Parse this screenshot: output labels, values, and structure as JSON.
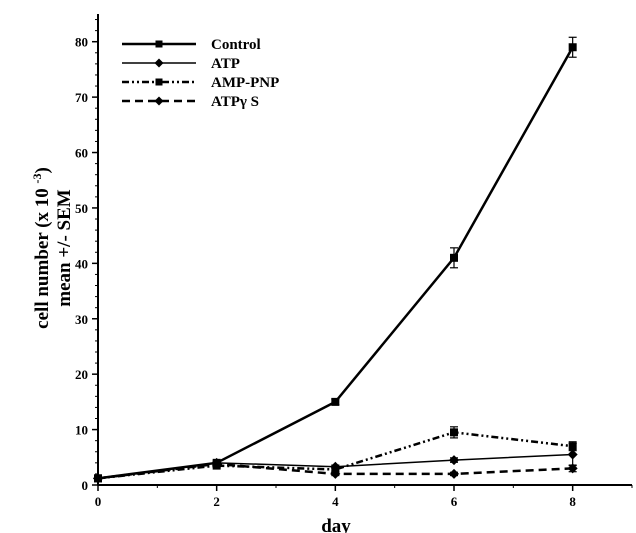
{
  "chart_data": {
    "type": "line",
    "xlabel": "day",
    "ylabel_line1": "cell number  (x 10 ",
    "ylabel_exp": "-3",
    "ylabel_line1_end": ")",
    "ylabel_line2": "mean +/-  SEM",
    "x": [
      0,
      2,
      4,
      6,
      8
    ],
    "xlim": [
      0,
      9
    ],
    "ylim": [
      0,
      85
    ],
    "xticks": [
      0,
      2,
      4,
      6,
      8
    ],
    "yticks": [
      0,
      10,
      20,
      30,
      40,
      50,
      60,
      70,
      80
    ],
    "grid": false,
    "legend_position": "top-left",
    "series": [
      {
        "name": "Control",
        "values": [
          1.2,
          4.0,
          15.0,
          41.0,
          79.0
        ],
        "err": [
          0.2,
          0.3,
          0.5,
          1.8,
          1.8
        ],
        "style": "solid",
        "marker": "square"
      },
      {
        "name": "ATP",
        "values": [
          1.2,
          4.0,
          3.3,
          4.5,
          5.5
        ],
        "err": [
          0.2,
          0.3,
          0.3,
          0.4,
          2.0
        ],
        "style": "thin",
        "marker": "diamond"
      },
      {
        "name": "AMP-PNP",
        "values": [
          1.2,
          3.5,
          2.8,
          9.5,
          7.0
        ],
        "err": [
          0.2,
          0.3,
          0.3,
          1.0,
          0.8
        ],
        "style": "dashdot",
        "marker": "square"
      },
      {
        "name": "ATPγ S",
        "values": [
          1.2,
          3.8,
          2.0,
          2.0,
          3.0
        ],
        "err": [
          0.2,
          0.3,
          0.3,
          0.3,
          0.6
        ],
        "style": "dashed",
        "marker": "diamond"
      }
    ],
    "colors": {
      "line": "#000000"
    }
  }
}
